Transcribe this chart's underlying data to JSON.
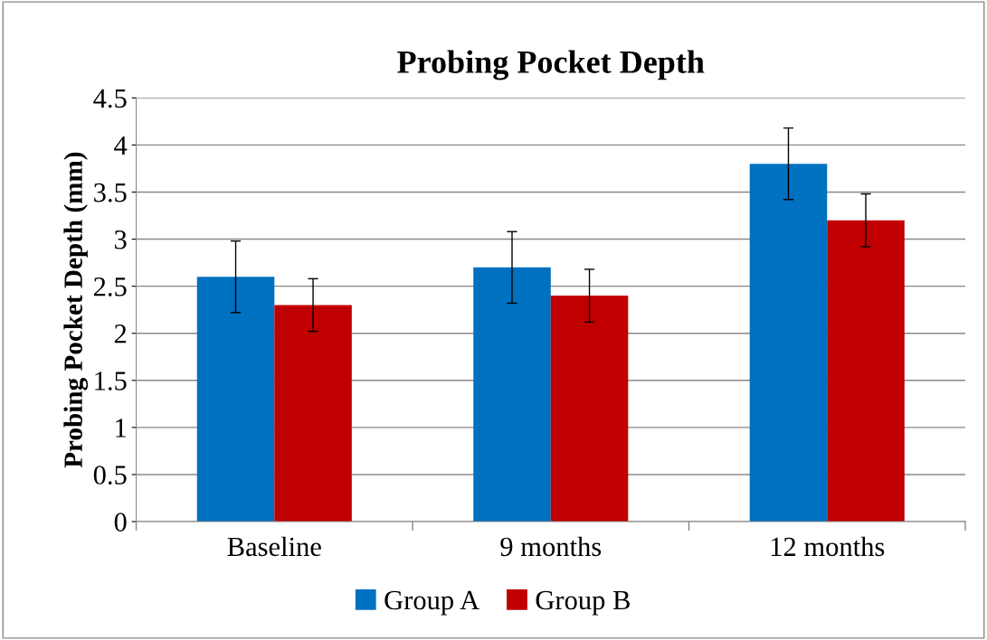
{
  "chart_data": {
    "type": "bar",
    "title": "Probing Pocket Depth",
    "ylabel": "Probing Pocket Depth (mm)",
    "categories": [
      "Baseline",
      "9 months",
      "12 months"
    ],
    "series": [
      {
        "name": "Group A",
        "color": "#0070c0",
        "values": [
          2.6,
          2.7,
          3.8
        ],
        "errors": [
          0.38,
          0.38,
          0.38
        ]
      },
      {
        "name": "Group B",
        "color": "#c00000",
        "values": [
          2.3,
          2.4,
          3.2
        ],
        "errors": [
          0.28,
          0.28,
          0.28
        ]
      }
    ],
    "ylim": [
      0,
      4.5
    ],
    "yticks": [
      0,
      0.5,
      1,
      1.5,
      2,
      2.5,
      3,
      3.5,
      4,
      4.5
    ],
    "grid": "y",
    "legend": "bottom"
  }
}
